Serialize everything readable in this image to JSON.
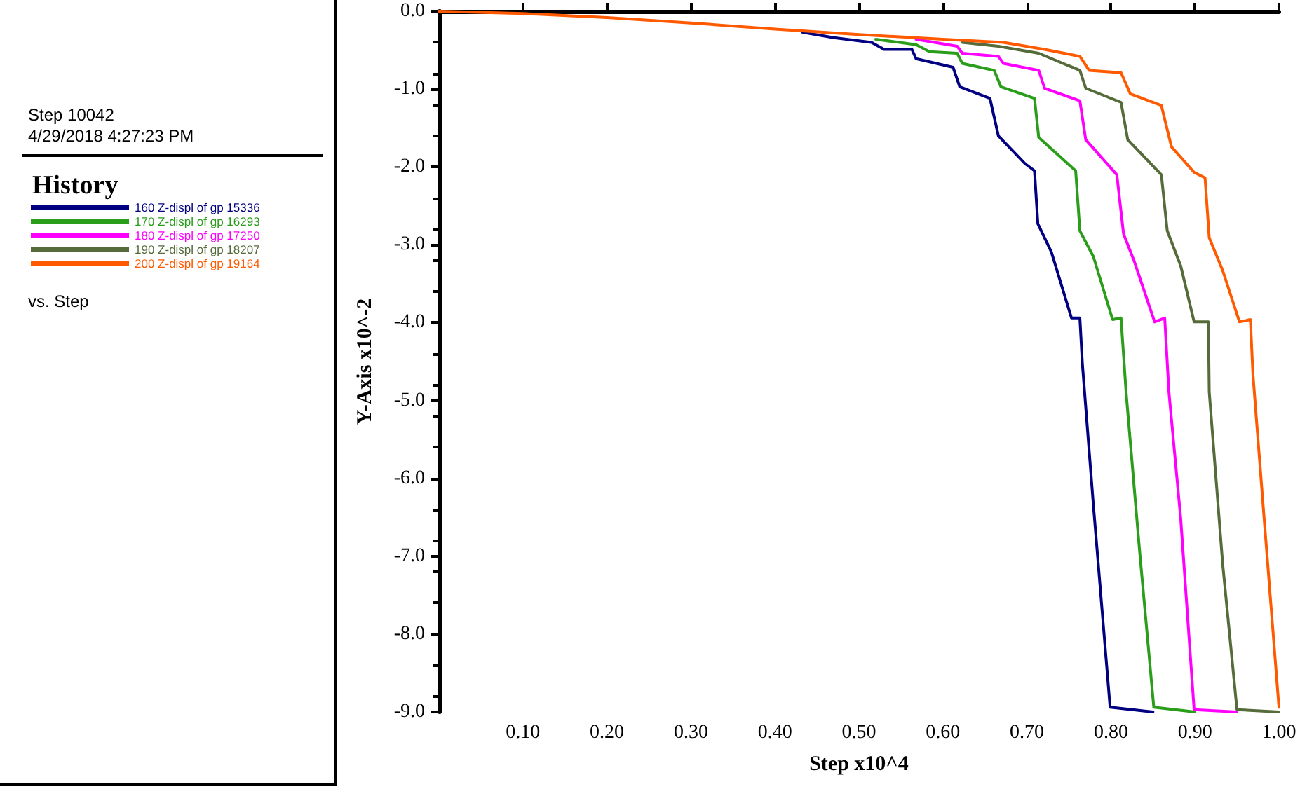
{
  "chart_data": {
    "type": "line",
    "xlabel": "Step x10^4",
    "ylabel": "Y-Axis x10^-2",
    "legend_title": "History",
    "legend": "left",
    "annotations": [
      "Step 10042",
      "4/29/2018 4:27:23 PM",
      "vs. Step"
    ],
    "xlim": [
      0,
      1.0
    ],
    "ylim": [
      -9.0,
      0.0
    ],
    "xticks": [
      {
        "value": 0.1,
        "label": "0.10"
      },
      {
        "value": 0.2,
        "label": "0.20"
      },
      {
        "value": 0.3,
        "label": "0.30"
      },
      {
        "value": 0.4,
        "label": "0.40"
      },
      {
        "value": 0.5,
        "label": "0.50"
      },
      {
        "value": 0.6,
        "label": "0.60"
      },
      {
        "value": 0.7,
        "label": "0.70"
      },
      {
        "value": 0.8,
        "label": "0.80"
      },
      {
        "value": 0.9,
        "label": "0.90"
      },
      {
        "value": 1.0,
        "label": "1.00"
      }
    ],
    "yticks": [
      {
        "value": 0,
        "label": "0.0"
      },
      {
        "value": -1,
        "label": "-1.0"
      },
      {
        "value": -2,
        "label": "-2.0"
      },
      {
        "value": -3,
        "label": "-3.0"
      },
      {
        "value": -4,
        "label": "-4.0"
      },
      {
        "value": -5,
        "label": "-5.0"
      },
      {
        "value": -6,
        "label": "-6.0"
      },
      {
        "value": -7,
        "label": "-7.0"
      },
      {
        "value": -8,
        "label": "-8.0"
      },
      {
        "value": -9,
        "label": "-9.0"
      }
    ],
    "grid": false,
    "marker": "none",
    "line_style": "solid",
    "series": [
      {
        "name": "160 Z-displ of gp 15336",
        "color": "#000080",
        "x": [
          0.433,
          0.47,
          0.515,
          0.53,
          0.563,
          0.568,
          0.612,
          0.62,
          0.656,
          0.666,
          0.698,
          0.709,
          0.713,
          0.729,
          0.753,
          0.763,
          0.766,
          0.779,
          0.799,
          0.85
        ],
        "values": [
          -0.27,
          -0.34,
          -0.4,
          -0.49,
          -0.49,
          -0.61,
          -0.72,
          -0.97,
          -1.12,
          -1.6,
          -1.96,
          -2.05,
          -2.73,
          -3.09,
          -3.94,
          -3.94,
          -4.53,
          -6.33,
          -8.94,
          -9.0
        ]
      },
      {
        "name": "170 Z-displ of gp 16293",
        "color": "#2a9d1a",
        "x": [
          0.52,
          0.568,
          0.584,
          0.617,
          0.623,
          0.661,
          0.669,
          0.709,
          0.714,
          0.758,
          0.763,
          0.779,
          0.802,
          0.812,
          0.818,
          0.834,
          0.851,
          0.9
        ],
        "values": [
          -0.36,
          -0.43,
          -0.52,
          -0.54,
          -0.67,
          -0.76,
          -0.97,
          -1.12,
          -1.62,
          -2.05,
          -2.82,
          -3.15,
          -3.96,
          -3.94,
          -4.89,
          -6.92,
          -8.94,
          -9.0
        ]
      },
      {
        "name": "180 Z-displ of gp 17250",
        "color": "#ff00ff",
        "x": [
          0.568,
          0.617,
          0.623,
          0.666,
          0.672,
          0.714,
          0.721,
          0.763,
          0.77,
          0.807,
          0.815,
          0.828,
          0.852,
          0.864,
          0.869,
          0.883,
          0.899,
          0.95
        ],
        "values": [
          -0.36,
          -0.45,
          -0.54,
          -0.58,
          -0.67,
          -0.76,
          -0.99,
          -1.15,
          -1.65,
          -2.1,
          -2.86,
          -3.22,
          -3.99,
          -3.94,
          -4.89,
          -6.51,
          -8.97,
          -9.0
        ]
      },
      {
        "name": "190 Z-displ of gp 18207",
        "color": "#556b3a",
        "x": [
          0.623,
          0.666,
          0.714,
          0.763,
          0.77,
          0.812,
          0.82,
          0.86,
          0.867,
          0.883,
          0.899,
          0.916,
          0.917,
          0.933,
          0.95,
          1.0
        ],
        "values": [
          -0.4,
          -0.45,
          -0.54,
          -0.76,
          -0.99,
          -1.17,
          -1.65,
          -2.1,
          -2.82,
          -3.27,
          -3.99,
          -3.99,
          -4.89,
          -7.1,
          -8.97,
          -9.0
        ]
      },
      {
        "name": "200 Z-displ of gp 19164",
        "color": "#ff5a00",
        "x": [
          0,
          0.1,
          0.2,
          0.3,
          0.4,
          0.5,
          0.6,
          0.672,
          0.721,
          0.763,
          0.774,
          0.812,
          0.823,
          0.86,
          0.872,
          0.899,
          0.912,
          0.917,
          0.933,
          0.953,
          0.966,
          0.969,
          0.981,
          1.0
        ],
        "values": [
          0,
          -0.03,
          -0.08,
          -0.15,
          -0.23,
          -0.3,
          -0.36,
          -0.4,
          -0.49,
          -0.58,
          -0.76,
          -0.79,
          -1.06,
          -1.21,
          -1.74,
          -2.07,
          -2.14,
          -2.91,
          -3.33,
          -3.99,
          -3.96,
          -4.66,
          -6.33,
          -8.94
        ]
      }
    ]
  }
}
